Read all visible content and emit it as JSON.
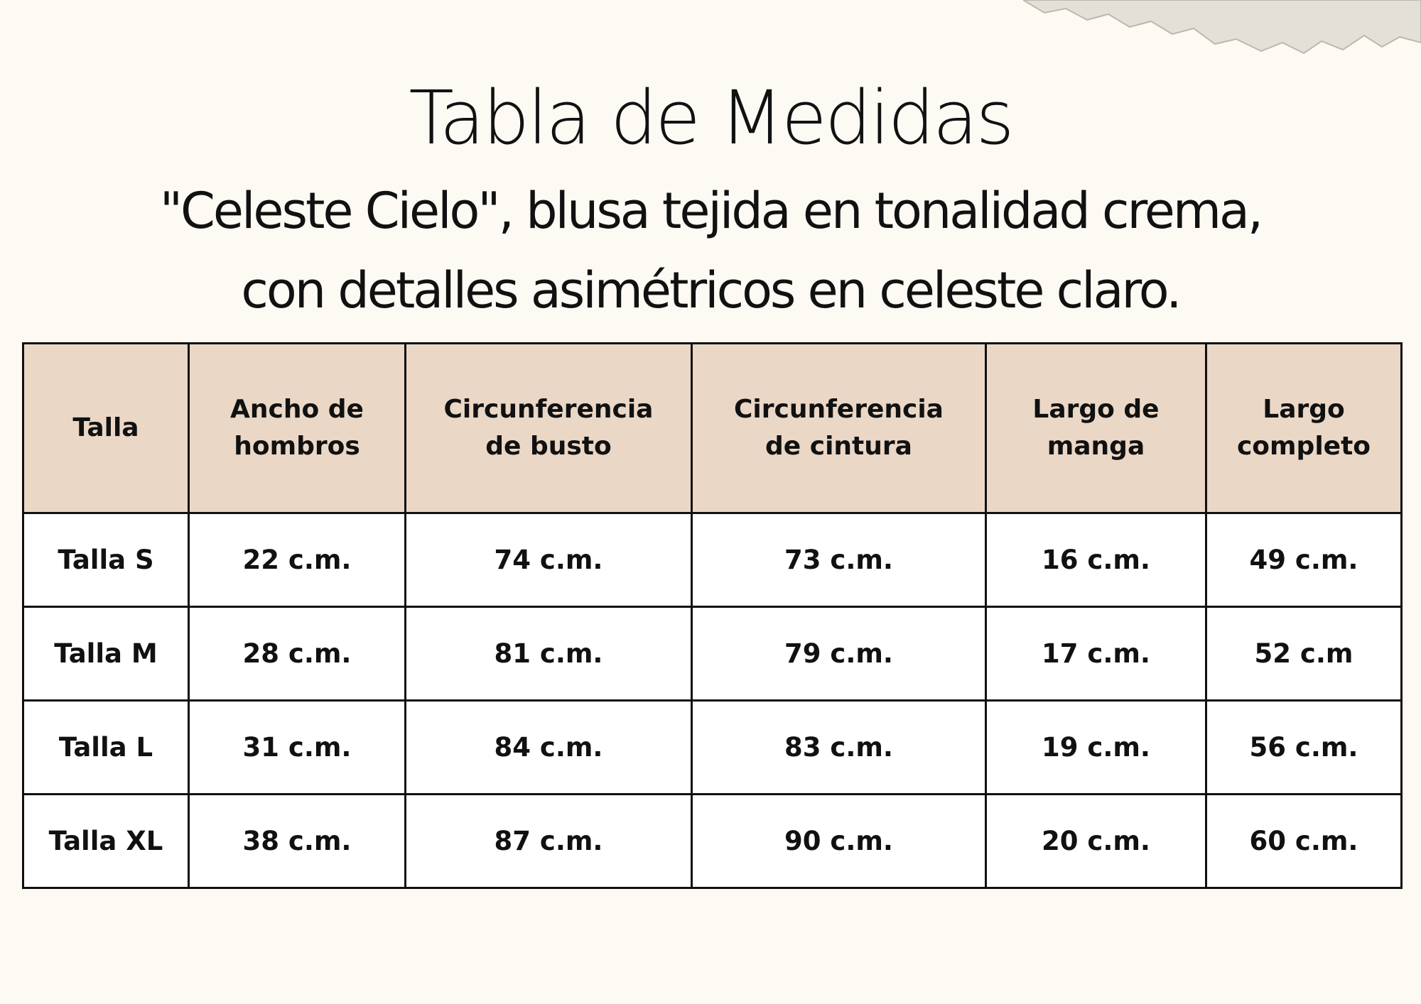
{
  "header": {
    "title": "Tabla de Medidas",
    "subtitle_lines": [
      "\"Celeste Cielo\", blusa tejida en tonalidad crema,",
      "con detalles asimétricos en celeste claro."
    ]
  },
  "table": {
    "columns": [
      [
        "Talla"
      ],
      [
        "Ancho de",
        "hombros"
      ],
      [
        "Circunferencia",
        "de busto"
      ],
      [
        "Circunferencia",
        "de cintura"
      ],
      [
        "Largo de",
        "manga"
      ],
      [
        "Largo",
        "completo"
      ]
    ],
    "rows": [
      [
        "Talla S",
        "22 c.m.",
        "74 c.m.",
        "73 c.m.",
        "16 c.m.",
        "49 c.m."
      ],
      [
        "Talla M",
        "28 c.m.",
        "81 c.m.",
        "79 c.m.",
        "17 c.m.",
        "52 c.m"
      ],
      [
        "Talla L",
        "31 c.m.",
        "84 c.m.",
        "83 c.m.",
        "19 c.m.",
        "56 c.m."
      ],
      [
        "Talla XL",
        "38 c.m.",
        "87 c.m.",
        "90 c.m.",
        "20 c.m.",
        "60 c.m."
      ]
    ]
  }
}
